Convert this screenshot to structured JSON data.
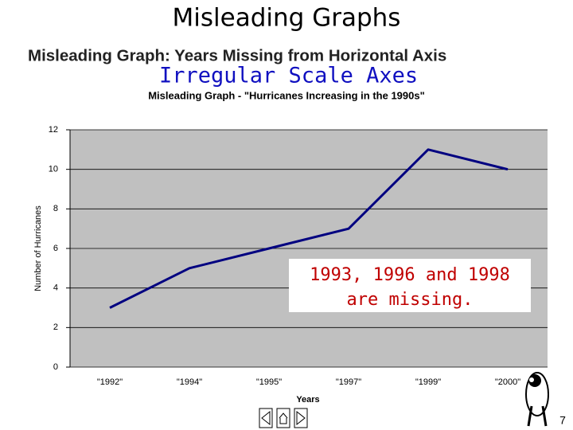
{
  "slide": {
    "title": "Misleading Graphs",
    "heading": "Misleading Graph: Years Missing from Horizontal Axis",
    "subtitle": "Irregular Scale Axes",
    "callout": [
      "1993, 1996 and 1998",
      "are missing."
    ],
    "page_number": 7
  },
  "chart_data": {
    "type": "line",
    "title": "Misleading Graph - \"Hurricanes Increasing in the 1990s\"",
    "x_label": "Years",
    "y_label": "Number of Hurricanes",
    "categories": [
      "\"1992\"",
      "\"1994\"",
      "\"1995\"",
      "\"1997\"",
      "\"1999\"",
      "\"2000\""
    ],
    "values": [
      3,
      5,
      6,
      7,
      11,
      10
    ],
    "color": "#000080",
    "ylim": [
      0,
      12
    ],
    "yticks": [
      0,
      2,
      4,
      6,
      8,
      10,
      12
    ],
    "grid": true
  }
}
